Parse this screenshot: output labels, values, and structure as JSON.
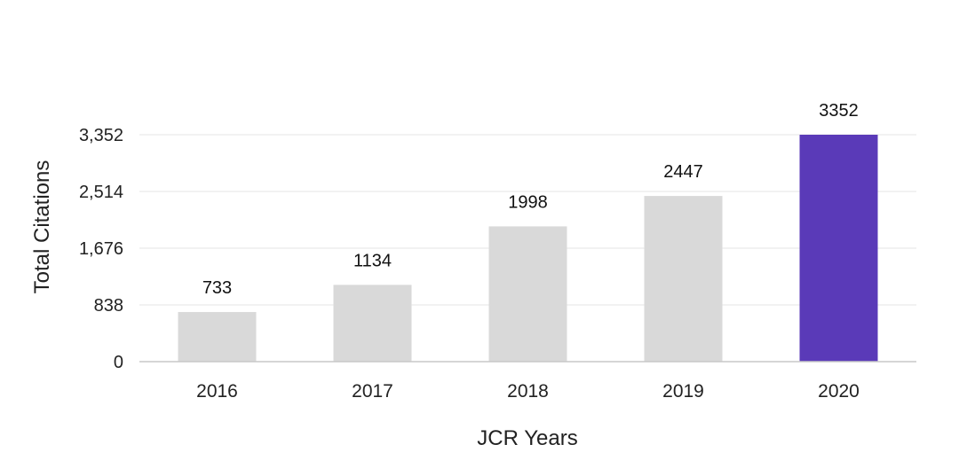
{
  "chart_data": {
    "type": "bar",
    "categories": [
      "2016",
      "2017",
      "2018",
      "2019",
      "2020"
    ],
    "values": [
      733,
      1134,
      1998,
      2447,
      3352
    ],
    "data_labels": [
      "733",
      "1134",
      "1998",
      "2447",
      "3352"
    ],
    "highlight_index": 4,
    "xlabel": "JCR Years",
    "ylabel": "Total Citations",
    "ylim": [
      0,
      3352
    ],
    "yticks": [
      0,
      838,
      1676,
      2514,
      3352
    ],
    "ytick_labels": [
      "0",
      "838",
      "1,676",
      "2,514",
      "3,352"
    ],
    "grid": true,
    "colors": {
      "bar": "#d9d9d9",
      "highlight": "#5a3ab8",
      "grid": "#e6e6e6",
      "baseline": "#c8c8c8"
    }
  }
}
